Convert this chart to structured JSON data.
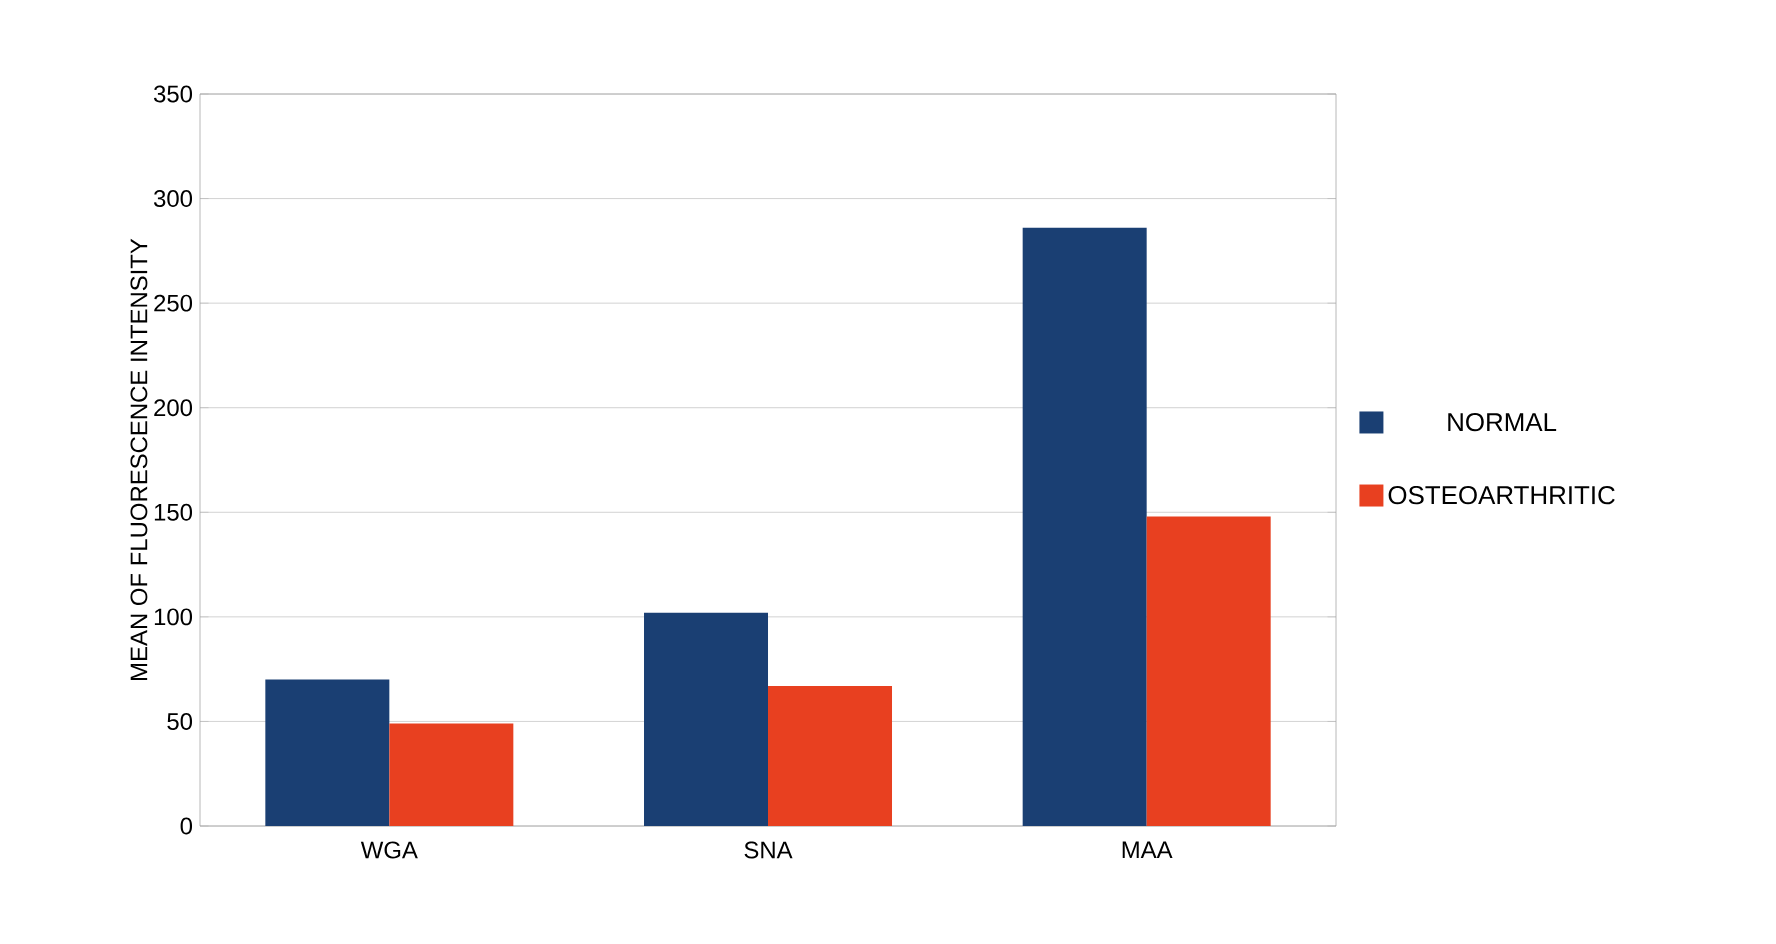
{
  "chart_data": {
    "type": "bar",
    "ylabel": "MEAN OF FLUORESCENCE INTENSITY",
    "categories": [
      "WGA",
      "SNA",
      "MAA"
    ],
    "series": [
      {
        "name": "NORMAL",
        "color": "#1a3f73",
        "values": [
          70,
          102,
          286
        ]
      },
      {
        "name": "OSTEOARTHRITIC",
        "color": "#e84020",
        "values": [
          49,
          67,
          148
        ]
      }
    ],
    "ylim": [
      0,
      350
    ],
    "yticks": [
      0,
      50,
      100,
      150,
      200,
      250,
      300,
      350
    ],
    "grid": "y",
    "legend": "right"
  }
}
